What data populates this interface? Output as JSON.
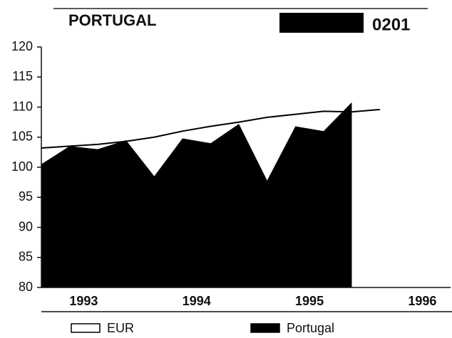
{
  "chart_data": {
    "type": "area",
    "title": "PORTUGAL",
    "code": "0201",
    "series": [
      {
        "name": "Portugal",
        "kind": "area",
        "color": "#000000",
        "x": [
          1993.125,
          1993.375,
          1993.625,
          1993.875,
          1994.125,
          1994.375,
          1994.625,
          1994.875,
          1995.125,
          1995.375,
          1995.625,
          1995.875
        ],
        "values": [
          100.5,
          103.5,
          103,
          104.5,
          98.5,
          104.8,
          104,
          107.2,
          97.8,
          106.8,
          106,
          110.8
        ]
      },
      {
        "name": "EUR",
        "kind": "line",
        "color": "#000000",
        "x": [
          1993.125,
          1993.375,
          1993.625,
          1993.875,
          1994.125,
          1994.375,
          1994.625,
          1994.875,
          1995.125,
          1995.375,
          1995.625,
          1995.875,
          1996.125
        ],
        "values": [
          103.2,
          103.5,
          103.8,
          104.3,
          105,
          106,
          106.8,
          107.5,
          108.3,
          108.8,
          109.3,
          109.2,
          109.6
        ]
      }
    ],
    "xlim": [
      1993.125,
      1996.75
    ],
    "xticks": [
      {
        "value": 1993.5,
        "label": "1993"
      },
      {
        "value": 1994.5,
        "label": "1994"
      },
      {
        "value": 1995.5,
        "label": "1995"
      },
      {
        "value": 1996.5,
        "label": "1996"
      }
    ],
    "ylim": [
      80,
      120
    ],
    "yticks": [
      80,
      85,
      90,
      95,
      100,
      105,
      110,
      115,
      120
    ]
  }
}
